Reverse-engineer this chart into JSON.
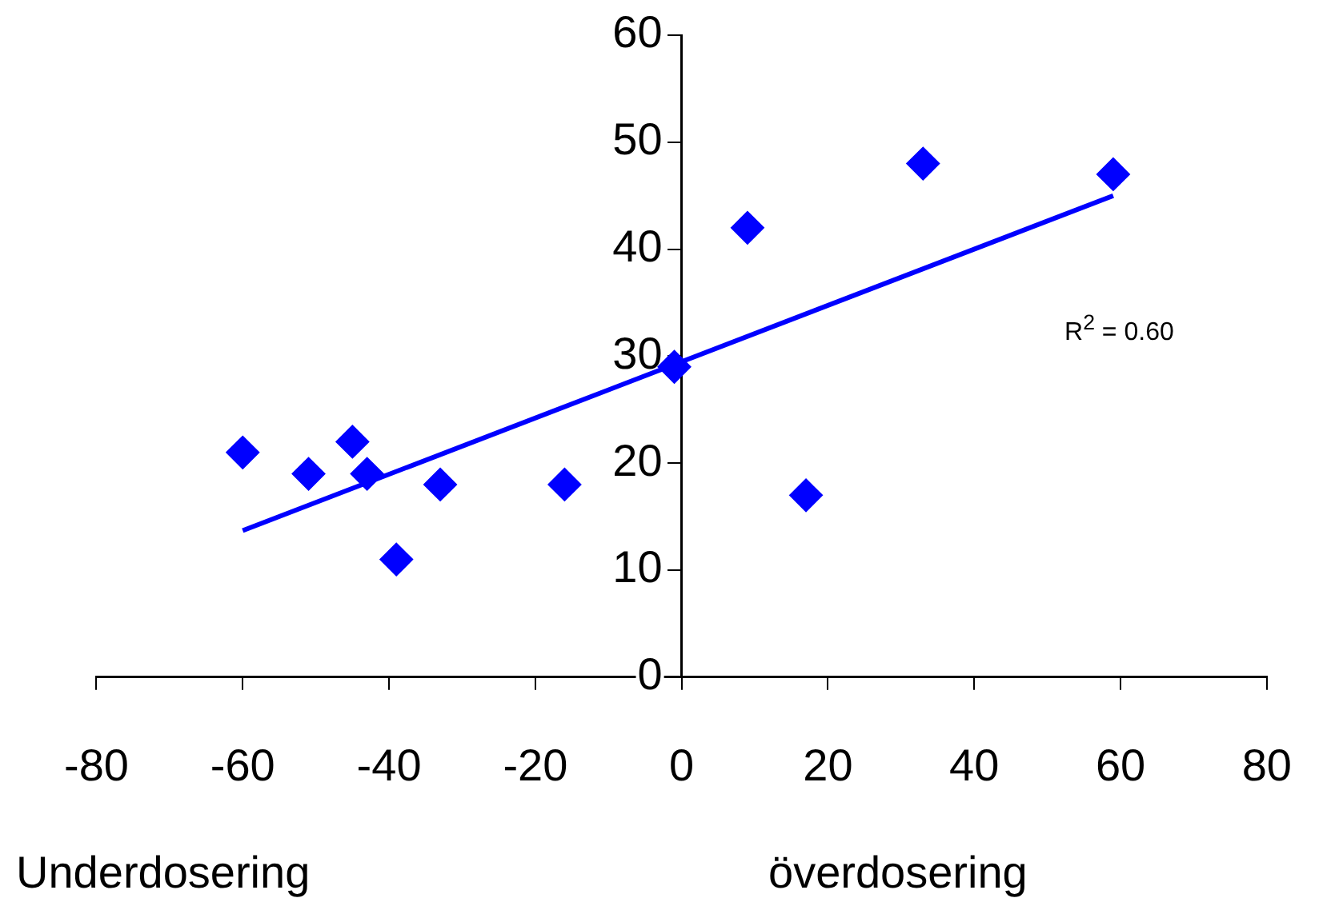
{
  "chart_data": {
    "type": "scatter",
    "xlim": [
      -80,
      80
    ],
    "xticks": [
      -80,
      -60,
      -40,
      -20,
      0,
      20,
      40,
      60,
      80
    ],
    "ylim": [
      0,
      60
    ],
    "yticks": [
      0,
      10,
      20,
      30,
      40,
      50,
      60
    ],
    "grid": false,
    "legend": false,
    "marker": "diamond",
    "series": [
      {
        "color": "#0000ff",
        "x": [
          -60,
          -51,
          -45,
          -43,
          -39,
          -33,
          -16,
          -1,
          9,
          17,
          33,
          59
        ],
        "values": [
          21,
          19,
          22,
          19,
          11,
          18,
          18,
          29,
          42,
          17,
          48,
          47
        ]
      },
      {
        "type": "line",
        "color": "#0000ff",
        "marker": "none",
        "x": [
          -60,
          59
        ],
        "values": [
          13.7,
          45
        ]
      }
    ],
    "annotations": [
      "R$^{2}$ = 0.60",
      "Underdosering",
      "överdosering"
    ]
  }
}
